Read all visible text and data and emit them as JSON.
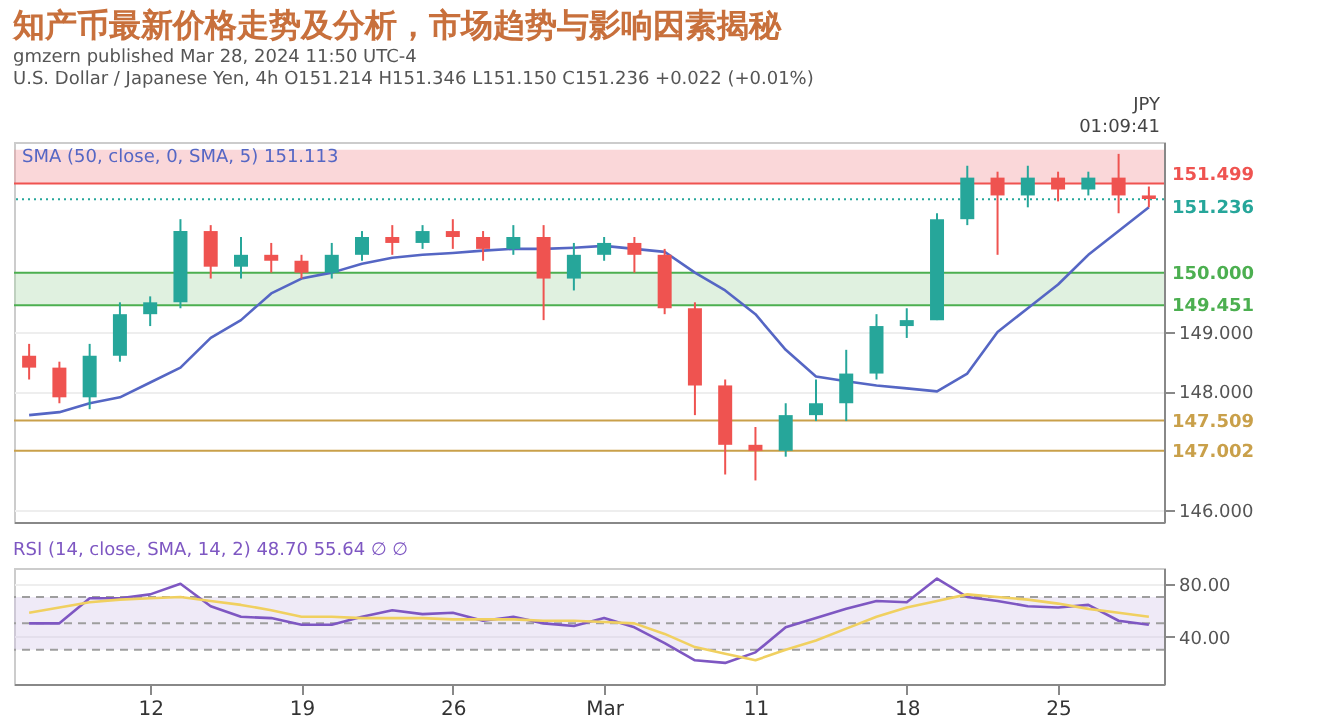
{
  "chart_data": [
    {
      "type": "candlestick",
      "title": "知产币最新价格走势及分析，市场趋势与影响因素揭秘",
      "annotations": [
        "gmzern published Mar 28, 2024 11:50 UTC-4",
        "U.S. Dollar / Japanese Yen, 4h  O151.214  H151.346  L151.150  C151.236  +0.022 (+0.01%)",
        "SMA (50, close, 0, SMA, 5)  151.113",
        "JPY",
        "01:09:41"
      ],
      "categories": [
        null,
        null,
        null,
        null,
        null,
        null,
        null,
        null,
        null,
        null,
        null,
        null,
        null,
        null,
        null,
        null,
        null,
        null,
        null,
        null,
        null,
        null,
        null,
        null,
        null,
        null,
        null,
        null,
        null,
        null,
        null,
        null,
        null,
        null,
        null,
        null,
        null,
        null
      ],
      "ohlc": [
        [
          148.6,
          148.8,
          148.2,
          148.4
        ],
        [
          148.4,
          148.5,
          147.8,
          147.9
        ],
        [
          147.9,
          148.8,
          147.7,
          148.6
        ],
        [
          148.6,
          149.5,
          148.5,
          149.3
        ],
        [
          149.3,
          149.6,
          149.1,
          149.5
        ],
        [
          149.5,
          150.9,
          149.4,
          150.7
        ],
        [
          150.7,
          150.8,
          149.9,
          150.1
        ],
        [
          150.1,
          150.6,
          149.9,
          150.3
        ],
        [
          150.3,
          150.5,
          150.0,
          150.2
        ],
        [
          150.2,
          150.3,
          149.9,
          150.0
        ],
        [
          150.0,
          150.5,
          149.9,
          150.3
        ],
        [
          150.3,
          150.7,
          150.2,
          150.6
        ],
        [
          150.6,
          150.8,
          150.3,
          150.5
        ],
        [
          150.5,
          150.8,
          150.4,
          150.7
        ],
        [
          150.7,
          150.9,
          150.4,
          150.6
        ],
        [
          150.6,
          150.7,
          150.2,
          150.4
        ],
        [
          150.4,
          150.8,
          150.3,
          150.6
        ],
        [
          150.6,
          150.8,
          149.2,
          149.9
        ],
        [
          149.9,
          150.5,
          149.7,
          150.3
        ],
        [
          150.3,
          150.6,
          150.2,
          150.5
        ],
        [
          150.5,
          150.6,
          150.0,
          150.3
        ],
        [
          150.3,
          150.4,
          149.3,
          149.4
        ],
        [
          149.4,
          149.5,
          147.6,
          148.1
        ],
        [
          148.1,
          148.2,
          146.6,
          147.1
        ],
        [
          147.1,
          147.4,
          146.5,
          147.0
        ],
        [
          147.0,
          147.8,
          146.9,
          147.6
        ],
        [
          147.6,
          148.2,
          147.5,
          147.8
        ],
        [
          147.8,
          148.7,
          147.5,
          148.3
        ],
        [
          148.3,
          149.3,
          148.2,
          149.1
        ],
        [
          149.1,
          149.4,
          148.9,
          149.2
        ],
        [
          149.2,
          151.0,
          149.2,
          150.9
        ],
        [
          150.9,
          151.8,
          150.8,
          151.6
        ],
        [
          151.6,
          151.7,
          150.3,
          151.3
        ],
        [
          151.3,
          151.8,
          151.1,
          151.6
        ],
        [
          151.6,
          151.7,
          151.2,
          151.4
        ],
        [
          151.4,
          151.7,
          151.3,
          151.6
        ],
        [
          151.6,
          152.0,
          151.0,
          151.3
        ],
        [
          151.3,
          151.45,
          151.1,
          151.24
        ]
      ],
      "colors": [
        "#ef5350",
        "#ef5350",
        "#26a69a",
        "#26a69a",
        "#26a69a",
        "#26a69a",
        "#ef5350",
        "#26a69a",
        "#ef5350",
        "#ef5350",
        "#26a69a",
        "#26a69a",
        "#ef5350",
        "#26a69a",
        "#ef5350",
        "#ef5350",
        "#26a69a",
        "#ef5350",
        "#26a69a",
        "#26a69a",
        "#ef5350",
        "#ef5350",
        "#ef5350",
        "#ef5350",
        "#ef5350",
        "#26a69a",
        "#26a69a",
        "#26a69a",
        "#26a69a",
        "#26a69a",
        "#26a69a",
        "#26a69a",
        "#ef5350",
        "#26a69a",
        "#ef5350",
        "#26a69a",
        "#ef5350",
        "#ef5350"
      ],
      "series": [
        {
          "type": "line",
          "color": "#5566c4",
          "values": [
            147.6,
            147.65,
            147.8,
            147.9,
            148.15,
            148.4,
            148.9,
            149.2,
            149.65,
            149.9,
            150.0,
            150.15,
            150.25,
            150.3,
            150.33,
            150.37,
            150.4,
            150.4,
            150.42,
            150.45,
            150.4,
            150.35,
            150.0,
            149.7,
            149.3,
            148.7,
            148.25,
            148.17,
            148.1,
            148.05,
            148.0,
            148.3,
            149.0,
            149.4,
            149.8,
            150.3,
            150.7,
            151.1
          ]
        }
      ],
      "ylim": [
        145.8,
        152.2
      ],
      "yticks": [
        {
          "value": 146,
          "label": "146.000"
        },
        {
          "value": 148,
          "label": "148.000"
        },
        {
          "value": 149,
          "label": "149.000"
        }
      ],
      "bands": [
        {
          "axis": "y",
          "from": 151.499,
          "to": 152.07,
          "label": null,
          "color": "#f28b93"
        },
        {
          "axis": "y",
          "from": 149.451,
          "to": 150.0,
          "label": null,
          "color": "#a5d6a7"
        }
      ],
      "ref_lines": [
        {
          "axis": "y",
          "value": 151.499,
          "label": "151.499",
          "color": "#ef5350",
          "line_style": "solid"
        },
        {
          "axis": "y",
          "value": 151.236,
          "label": "151.236",
          "color": "#26a69a",
          "line_style": "dotted"
        },
        {
          "axis": "y",
          "value": 150.0,
          "label": "150.000",
          "color": "#4caf50",
          "line_style": "solid"
        },
        {
          "axis": "y",
          "value": 149.451,
          "label": "149.451",
          "color": "#4caf50",
          "line_style": "solid"
        },
        {
          "axis": "y",
          "value": 147.509,
          "label": "147.509",
          "color": "#c9a04a",
          "line_style": "solid"
        },
        {
          "axis": "y",
          "value": 147.002,
          "label": "147.002",
          "color": "#c9a04a",
          "line_style": "solid"
        }
      ],
      "grid": "y",
      "tick_labels": "y"
    },
    {
      "type": "line",
      "annotations": [
        "RSI (14, close, SMA, 14, 2)  48.70  55.64  ∅  ∅"
      ],
      "categories": [
        null,
        null,
        null,
        null,
        "12",
        null,
        null,
        null,
        null,
        "19",
        null,
        null,
        null,
        null,
        "26",
        null,
        null,
        null,
        null,
        "Mar",
        null,
        null,
        null,
        null,
        "11",
        null,
        null,
        null,
        null,
        "18",
        null,
        null,
        null,
        null,
        "25",
        null,
        null,
        null
      ],
      "series": [
        {
          "color": "#7e57c2",
          "values": [
            50,
            50,
            69,
            69,
            72,
            80,
            63,
            55,
            54,
            49,
            49,
            55,
            60,
            57,
            58,
            52,
            55,
            50,
            48,
            54,
            47,
            35,
            22,
            20,
            28,
            47,
            54,
            61,
            67,
            66,
            84,
            70,
            67,
            63,
            62,
            64,
            52,
            49
          ]
        },
        {
          "color": "#f0d060",
          "values": [
            58,
            62,
            66,
            68,
            69,
            70,
            67,
            64,
            60,
            55,
            55,
            54,
            54,
            54,
            53,
            53,
            53,
            52,
            52,
            51,
            50,
            42,
            32,
            27,
            22,
            30,
            37,
            46,
            55,
            62,
            67,
            72,
            70,
            68,
            65,
            61,
            58,
            55
          ]
        }
      ],
      "ylim": [
        4,
        92
      ],
      "yticks": [
        {
          "value": 40,
          "label": "40.00"
        },
        {
          "value": 80,
          "label": "80.00"
        }
      ],
      "bands": [
        {
          "axis": "y",
          "from": 30,
          "to": 70,
          "label": null,
          "color": "#d1c4e9"
        }
      ],
      "ref_lines": [
        {
          "axis": "y",
          "value": 70,
          "label": null,
          "color": "#9e9e9e",
          "line_style": "dashed"
        },
        {
          "axis": "y",
          "value": 50,
          "label": null,
          "color": "#9e9e9e",
          "line_style": "dashed"
        },
        {
          "axis": "y",
          "value": 30,
          "label": null,
          "color": "#9e9e9e",
          "line_style": "dashed"
        }
      ],
      "grid": "y"
    }
  ]
}
